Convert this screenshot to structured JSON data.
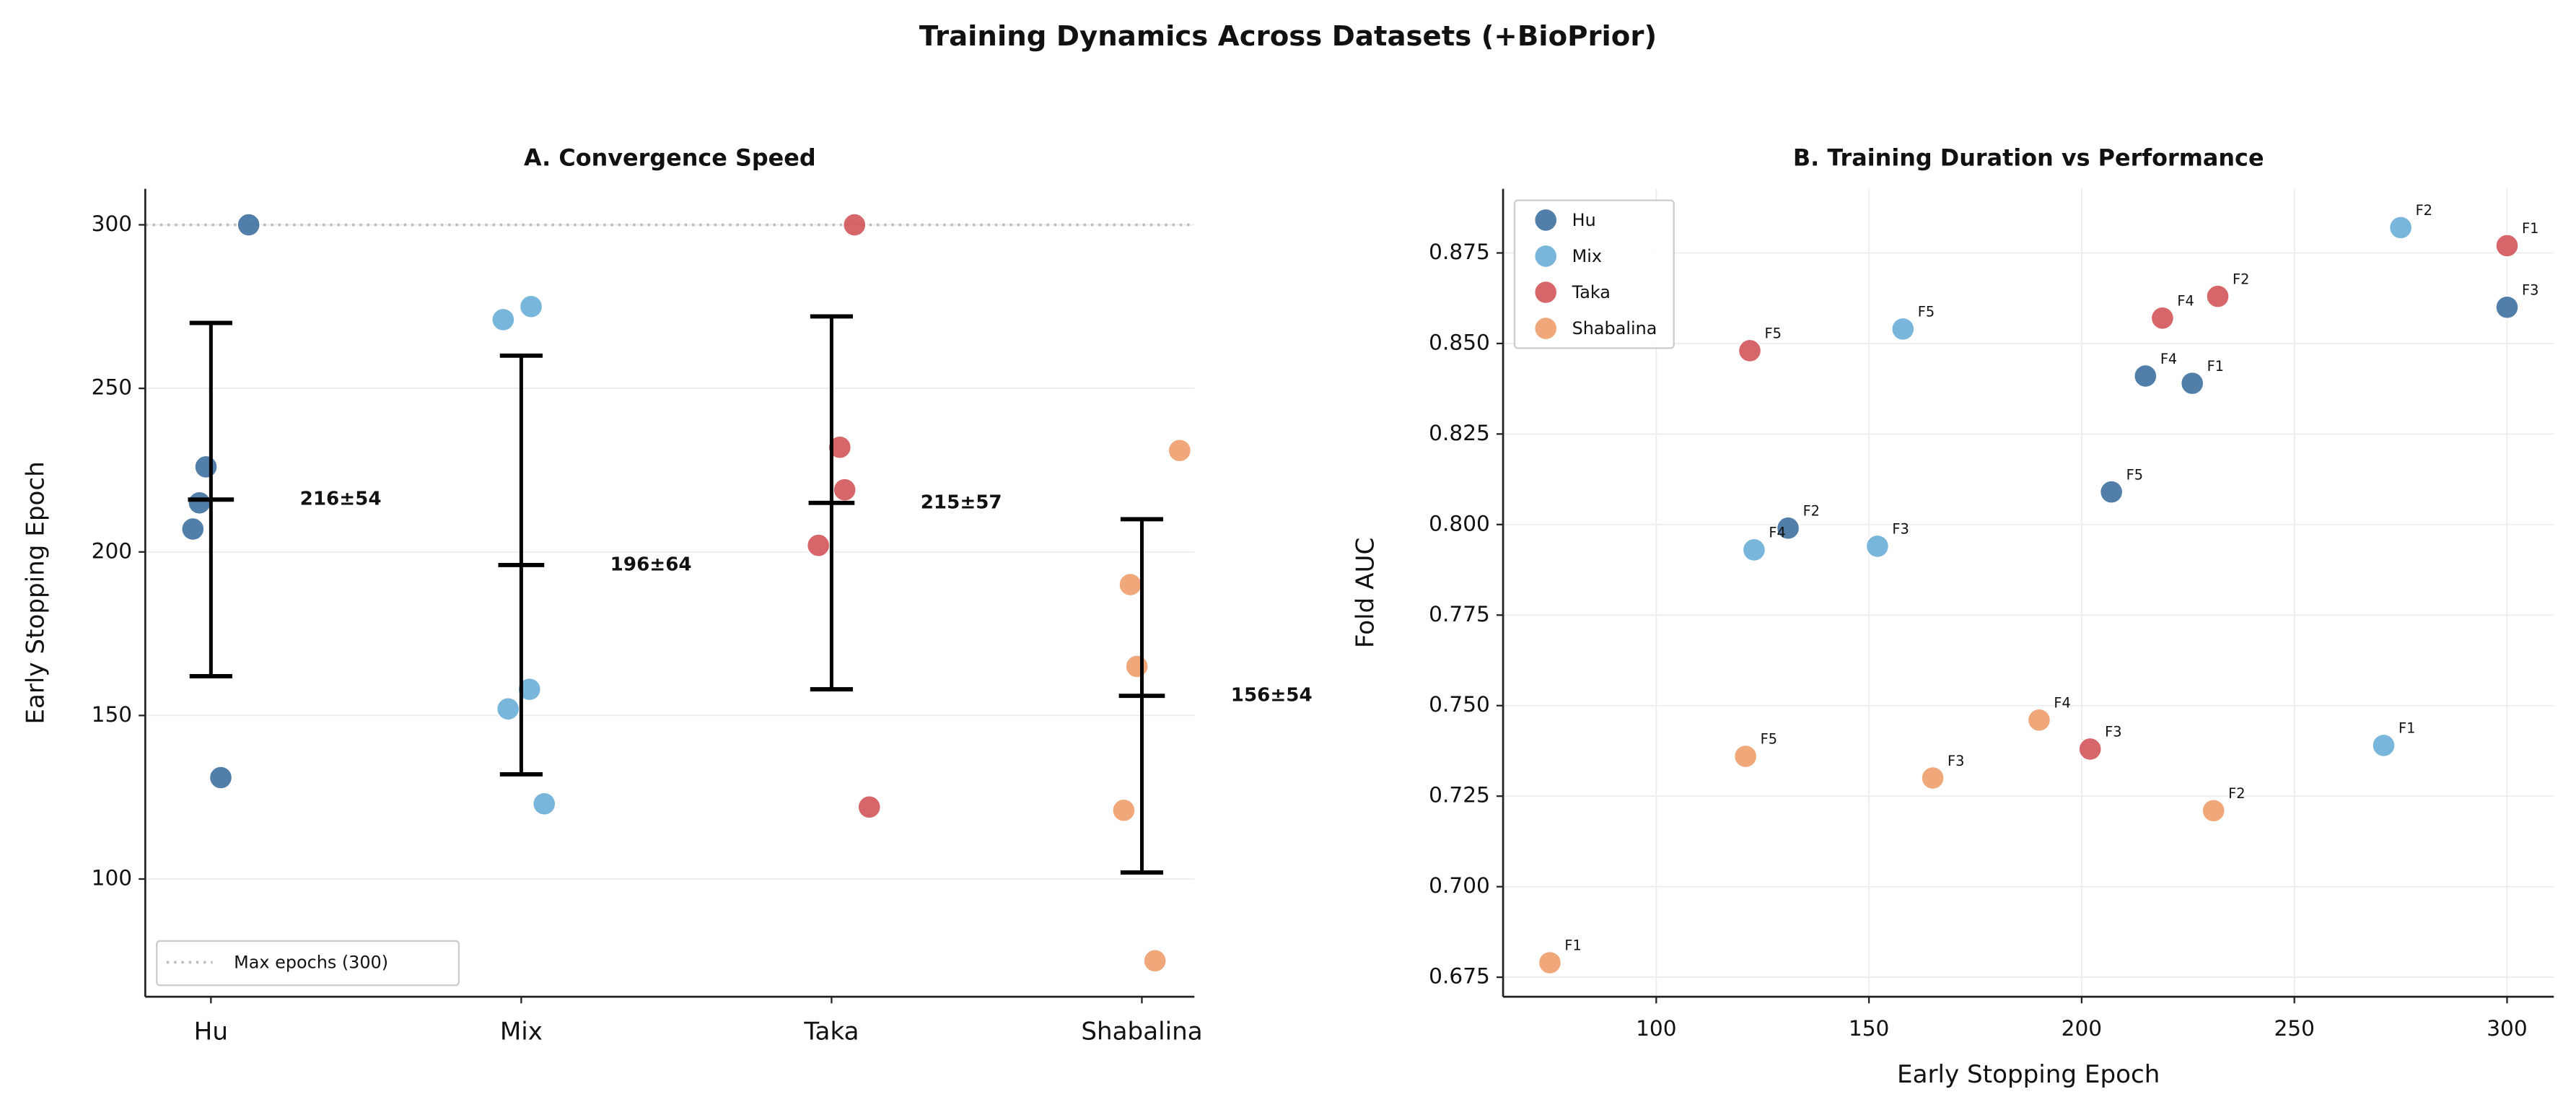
{
  "title": "Training Dynamics Across Datasets (+BioPrior)",
  "chart_data": [
    {
      "type": "strip",
      "title": "A. Convergence Speed",
      "ylabel": "Early Stopping Epoch",
      "categories": [
        "Hu",
        "Mix",
        "Taka",
        "Shabalina"
      ],
      "colors": [
        "#3f71a0",
        "#6aaed8",
        "#d2555a",
        "#ee9e6c"
      ],
      "annotation_colors": [
        "#2b6395",
        "#5aa5cf",
        "#c83a3f",
        "#e8894f"
      ],
      "values": [
        [
          300,
          226,
          215,
          207,
          131
        ],
        [
          271,
          275,
          152,
          123,
          158
        ],
        [
          300,
          232,
          202,
          219,
          122
        ],
        [
          75,
          231,
          165,
          190,
          121
        ]
      ],
      "means": [
        216,
        196,
        215,
        156
      ],
      "stds": [
        54,
        64,
        57,
        54
      ],
      "annotations": [
        "216±54",
        "196±64",
        "215±57",
        "156±54"
      ],
      "max_line": 300,
      "max_line_label": "Max epochs (300)",
      "legend": "lower left",
      "ylim": [
        64,
        311
      ],
      "yticks": [
        100,
        150,
        200,
        250,
        300
      ],
      "grid": true
    },
    {
      "type": "scatter",
      "title": "B. Training Duration vs Performance",
      "xlabel": "Early Stopping Epoch",
      "ylabel": "Fold AUC",
      "legend": "upper left",
      "series": [
        {
          "name": "Hu",
          "color": "#3f71a0",
          "x": [
            226,
            131,
            300,
            215,
            207
          ],
          "values": [
            0.839,
            0.799,
            0.86,
            0.841,
            0.809
          ],
          "labels": [
            "F1",
            "F2",
            "F3",
            "F4",
            "F5"
          ]
        },
        {
          "name": "Mix",
          "color": "#6aaed8",
          "x": [
            271,
            275,
            152,
            123,
            158
          ],
          "values": [
            0.739,
            0.882,
            0.794,
            0.793,
            0.854
          ],
          "labels": [
            "F1",
            "F2",
            "F3",
            "F4",
            "F5"
          ]
        },
        {
          "name": "Taka",
          "color": "#d2555a",
          "x": [
            300,
            232,
            202,
            219,
            122
          ],
          "values": [
            0.877,
            0.863,
            0.738,
            0.857,
            0.848
          ],
          "labels": [
            "F1",
            "F2",
            "F3",
            "F4",
            "F5"
          ]
        },
        {
          "name": "Shabalina",
          "color": "#ee9e6c",
          "x": [
            75,
            231,
            165,
            190,
            121
          ],
          "values": [
            0.679,
            0.721,
            0.73,
            0.746,
            0.736
          ],
          "labels": [
            "F1",
            "F2",
            "F3",
            "F4",
            "F5"
          ]
        }
      ],
      "xlim": [
        64,
        311
      ],
      "xticks": [
        100,
        150,
        200,
        250,
        300
      ],
      "ylim": [
        0.6696,
        0.8927
      ],
      "yticks": [
        0.675,
        {
          "value": 0.7,
          "label": "0.700"
        },
        0.725,
        {
          "value": 0.75,
          "label": "0.750"
        },
        0.775,
        {
          "value": 0.8,
          "label": "0.800"
        },
        0.825,
        {
          "value": 0.85,
          "label": "0.850"
        },
        0.875
      ],
      "grid": true
    }
  ]
}
